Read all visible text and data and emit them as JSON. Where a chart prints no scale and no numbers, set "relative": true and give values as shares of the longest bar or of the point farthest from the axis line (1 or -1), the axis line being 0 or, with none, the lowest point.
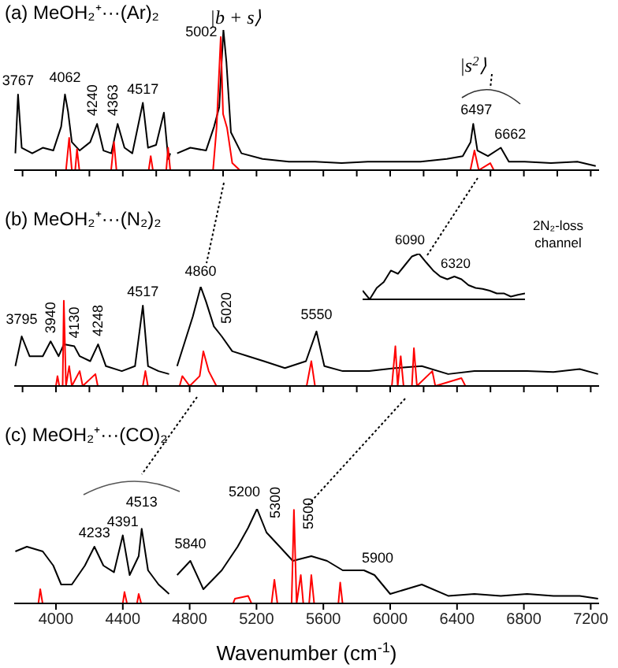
{
  "chart_data": [
    {
      "type": "line",
      "title": "(a) MeOH₂⁺···(Ar)₂",
      "relative": true,
      "xlim": [
        3750,
        7250
      ],
      "xticks": [
        3800,
        4000,
        4200,
        4400,
        4600,
        4800,
        5000,
        5200,
        5400,
        5600,
        5800,
        6000,
        6200,
        6400,
        6600,
        6800,
        7000,
        7200
      ],
      "tick_labels": false,
      "marker": "none",
      "line_style": "solid",
      "series": [
        {
          "color": "#000000",
          "x": [
            3757,
            3773,
            3795,
            3858,
            3921,
            3984,
            4031,
            4054,
            4072,
            4095,
            4142,
            4205,
            4246,
            4284,
            4331,
            4369,
            4410,
            4457,
            4520,
            4551,
            4599,
            4646,
            4672,
            4684,
            4700,
            4725,
            4804,
            4898,
            4946,
            4977,
            5002,
            5020,
            5047,
            5110,
            5236,
            5394,
            5551,
            5709,
            5866,
            6024,
            6181,
            6339,
            6434,
            6481,
            6497,
            6522,
            6585,
            6662,
            6710,
            6805,
            6962,
            7120,
            7230
          ],
          "values": [
            0.12,
            0.54,
            0.16,
            0.12,
            0.16,
            0.14,
            0.31,
            0.54,
            0.42,
            0.2,
            0.14,
            0.2,
            0.33,
            0.14,
            0.12,
            0.33,
            0.16,
            0.12,
            0.48,
            0.16,
            0.18,
            0.41,
            0.08,
            0.12,
            null,
            0.12,
            0.16,
            0.14,
            0.31,
            0.45,
            1,
            0.77,
            0.27,
            0.12,
            0.08,
            0.06,
            0.06,
            0.05,
            0.06,
            0.06,
            0.06,
            0.08,
            0.1,
            0.2,
            0.33,
            0.14,
            0.1,
            0.16,
            0.06,
            0.06,
            0.05,
            0.06,
            0.03
          ]
        },
        {
          "color": "#ff0000",
          "x": [
            3757,
            4060,
            4079,
            4095,
            4115,
            4126,
            4140,
            4330,
            4347,
            4362,
            4555,
            4567,
            4580,
            4660,
            4671,
            4684,
            4940,
            4961,
            4986,
            5000,
            5024,
            5055,
            5100,
            6480,
            6504,
            6530,
            6599,
            6620,
            7230
          ],
          "values": [
            0,
            0,
            0.23,
            0,
            0,
            0.15,
            0,
            0,
            0.2,
            0,
            0,
            0.1,
            0,
            0,
            0.16,
            0,
            0,
            0.3,
            0.95,
            0.4,
            0.3,
            0.05,
            0,
            0,
            0.14,
            0,
            0.05,
            0,
            0
          ]
        }
      ],
      "annotations": [
        {
          "text": "3767",
          "x": 3773,
          "y": 0.54
        },
        {
          "text": "4062",
          "x": 4054,
          "y": 0.54
        },
        {
          "text": "4240",
          "x": 4246,
          "y": 0.33
        },
        {
          "text": "4363",
          "x": 4369,
          "y": 0.33
        },
        {
          "text": "4517",
          "x": 4520,
          "y": 0.48
        },
        {
          "text": "5002",
          "x": 5002,
          "y": 1
        },
        {
          "text": "|b + s⟩",
          "x": 5002,
          "y": 1
        },
        {
          "text": "|s$^{2}$⟩",
          "x": 6497,
          "y": 0.33
        },
        {
          "text": "6497",
          "x": 6497,
          "y": 0.33
        },
        {
          "text": "6662",
          "x": 6662,
          "y": 0.16
        }
      ]
    },
    {
      "type": "line",
      "title": "(b) MeOH₂⁺···(N₂)₂",
      "relative": true,
      "xlim": [
        3750,
        7250
      ],
      "xticks": [
        3800,
        4000,
        4200,
        4400,
        4600,
        4800,
        5000,
        5200,
        5400,
        5600,
        5800,
        6000,
        6200,
        6400,
        6600,
        6800,
        7000,
        7200
      ],
      "tick_labels": false,
      "marker": "none",
      "line_style": "solid",
      "series": [
        {
          "color": "#000000",
          "x": [
            3757,
            3795,
            3842,
            3921,
            3968,
            4016,
            4047,
            4110,
            4142,
            4205,
            4252,
            4299,
            4394,
            4473,
            4520,
            4551,
            4614,
            4677,
            4700,
            4725,
            4772,
            4819,
            4866,
            4898,
            4945,
            4992,
            5055,
            5150,
            5244,
            5370,
            5496,
            5559,
            5606,
            5716,
            5874,
            6031,
            6189,
            6347,
            6504,
            6662,
            6819,
            6977,
            7134,
            7244
          ],
          "values": [
            0.2,
            0.5,
            0.3,
            0.3,
            0.45,
            0.3,
            0.42,
            0.4,
            0.3,
            0.25,
            0.42,
            0.2,
            0.15,
            0.2,
            0.81,
            0.2,
            0.15,
            0.12,
            null,
            0.2,
            0.45,
            0.7,
            1,
            0.85,
            0.6,
            0.5,
            0.35,
            0.3,
            0.25,
            0.18,
            0.25,
            0.55,
            0.2,
            0.15,
            0.15,
            0.18,
            0.2,
            0.12,
            0.15,
            0.15,
            0.15,
            0.14,
            0.17,
            0.12
          ]
        },
        {
          "color": "#ff0000",
          "x": [
            3757,
            4000,
            4009,
            4020,
            4040,
            4047,
            4060,
            4079,
            4095,
            4142,
            4160,
            4236,
            4250,
            4520,
            4535,
            4550,
            4740,
            4756,
            4800,
            4860,
            4882,
            4914,
            4960,
            5500,
            5528,
            5550,
            6010,
            6031,
            6045,
            6063,
            6080,
            6130,
            6142,
            6160,
            6252,
            6270,
            6426,
            6450,
            7230
          ],
          "values": [
            0,
            0,
            0.1,
            0,
            0,
            0.86,
            0,
            0.2,
            0,
            0.15,
            0,
            0.12,
            0,
            0,
            0.15,
            0,
            0,
            0.1,
            0,
            0.1,
            0.35,
            0.15,
            0,
            0,
            0.25,
            0,
            0,
            0.4,
            0,
            0.3,
            0,
            0,
            0.38,
            0,
            0.15,
            0,
            0.08,
            0,
            0
          ]
        }
      ],
      "annotations": [
        {
          "text": "3795",
          "x": 3795,
          "y": 0.5
        },
        {
          "text": "3940",
          "x": 3968,
          "y": 0.45
        },
        {
          "text": "4130",
          "x": 4110,
          "y": 0.4
        },
        {
          "text": "4248",
          "x": 4252,
          "y": 0.42
        },
        {
          "text": "4517",
          "x": 4520,
          "y": 0.81
        },
        {
          "text": "4860",
          "x": 4866,
          "y": 1
        },
        {
          "text": "5020",
          "x": 5020,
          "y": 0.5
        },
        {
          "text": "5550",
          "x": 5559,
          "y": 0.55
        }
      ]
    },
    {
      "type": "line",
      "title": "(c) MeOH₂⁺···(CO)₂",
      "xlabel": "Wavenumber (cm$^{-1}$)",
      "relative": true,
      "xlim": [
        3750,
        7250
      ],
      "xticks": [
        4000,
        4400,
        4800,
        5200,
        5600,
        6000,
        6400,
        6800,
        7200
      ],
      "tick_labels": "x",
      "marker": "none",
      "line_style": "solid",
      "series": [
        {
          "color": "#000000",
          "x": [
            3757,
            3826,
            3921,
            3984,
            4031,
            4095,
            4173,
            4230,
            4284,
            4347,
            4400,
            4441,
            4495,
            4513,
            4551,
            4614,
            4677,
            4695,
            4725,
            4804,
            4882,
            4992,
            5087,
            5150,
            5203,
            5260,
            5339,
            5417,
            5528,
            5622,
            5716,
            5843,
            5906,
            6000,
            6189,
            6347,
            6504,
            6662,
            6819,
            6977,
            7134,
            7244
          ],
          "values": [
            0.55,
            0.6,
            0.55,
            0.4,
            0.2,
            0.2,
            0.4,
            0.6,
            0.4,
            0.33,
            0.72,
            0.3,
            0.5,
            0.79,
            0.35,
            0.2,
            0.1,
            null,
            0.3,
            0.45,
            0.15,
            0.35,
            0.6,
            0.8,
            1,
            0.75,
            0.6,
            0.45,
            0.5,
            0.45,
            0.35,
            0.35,
            0.3,
            0.1,
            0.2,
            0.08,
            0.1,
            0.08,
            0.1,
            0.08,
            0.08,
            0.05
          ]
        },
        {
          "color": "#ff0000",
          "x": [
            3757,
            3895,
            3906,
            3920,
            4400,
            4410,
            4425,
            4485,
            4495,
            4510,
            5060,
            5071,
            5150,
            5170,
            5290,
            5307,
            5325,
            5410,
            5424,
            5440,
            5465,
            5480,
            5515,
            5528,
            5545,
            5690,
            5701,
            5715,
            7230
          ],
          "values": [
            0,
            0,
            0.15,
            0,
            0,
            0.12,
            0,
            0,
            0.1,
            0,
            0,
            0.05,
            0.08,
            0,
            0,
            0.25,
            0,
            0,
            0.99,
            0,
            0.3,
            0,
            0,
            0.3,
            0,
            0,
            0.22,
            0,
            0
          ]
        }
      ],
      "annotations": [
        {
          "text": "4233",
          "x": 4230,
          "y": 0.6
        },
        {
          "text": "4391",
          "x": 4400,
          "y": 0.72
        },
        {
          "text": "4513",
          "x": 4513,
          "y": 0.79
        },
        {
          "text": "5840",
          "x": 4804,
          "y": 0.45
        },
        {
          "text": "5200",
          "x": 5203,
          "y": 1
        },
        {
          "text": "5300",
          "x": 5300,
          "y": 0.6
        },
        {
          "text": "5500",
          "x": 5500,
          "y": 0.45
        },
        {
          "text": "5900",
          "x": 5906,
          "y": 0.3
        }
      ]
    },
    {
      "type": "line",
      "relative": true,
      "categories": [
        null,
        null,
        null,
        null,
        null,
        null,
        null,
        null,
        null,
        null,
        null,
        null,
        null,
        null,
        null,
        null,
        null,
        null,
        null,
        null,
        null,
        null,
        null,
        null
      ],
      "tick_labels": false,
      "marker": "none",
      "line_style": "solid",
      "series": [
        {
          "color": "#000000",
          "values": [
            0.19,
            0,
            0.25,
            0.38,
            0.63,
            0.56,
            0.75,
            0.94,
            1,
            0.81,
            0.63,
            0.5,
            0.44,
            0.5,
            0.44,
            0.31,
            0.25,
            0.23,
            0.19,
            0.13,
            0.13,
            0.06,
            0.1,
            0.13
          ]
        }
      ],
      "annotations": [
        "6090",
        "6320",
        "2N₂-loss channel"
      ]
    }
  ]
}
